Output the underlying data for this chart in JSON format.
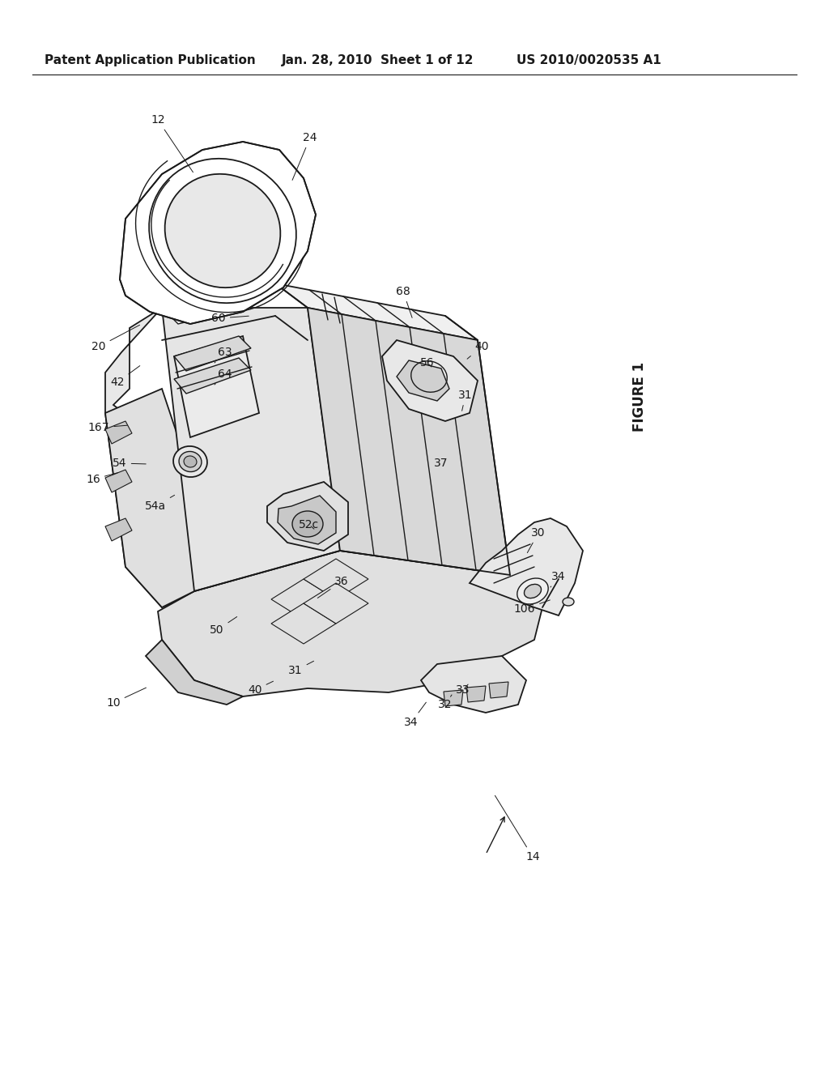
{
  "bg_color": "#ffffff",
  "header_left": "Patent Application Publication",
  "header_mid": "Jan. 28, 2010  Sheet 1 of 12",
  "header_right": "US 2010/0020535 A1",
  "figure_label": "FIGURE 1",
  "line_color": "#1a1a1a",
  "header_fontsize": 11,
  "label_fontsize": 10,
  "fig_width": 10.24,
  "fig_height": 13.2,
  "dpi": 100,
  "annotations": [
    [
      "10",
      148,
      870
    ],
    [
      "12",
      198,
      155
    ],
    [
      "14",
      660,
      1060
    ],
    [
      "16",
      118,
      595
    ],
    [
      "20",
      128,
      430
    ],
    [
      "24",
      378,
      175
    ],
    [
      "30",
      668,
      660
    ],
    [
      "31",
      370,
      830
    ],
    [
      "31",
      578,
      490
    ],
    [
      "32",
      555,
      870
    ],
    [
      "33",
      578,
      855
    ],
    [
      "34",
      510,
      895
    ],
    [
      "34",
      690,
      715
    ],
    [
      "36",
      428,
      720
    ],
    [
      "37",
      548,
      575
    ],
    [
      "40",
      318,
      855
    ],
    [
      "40",
      598,
      430
    ],
    [
      "42",
      150,
      475
    ],
    [
      "50",
      278,
      780
    ],
    [
      "52c",
      388,
      650
    ],
    [
      "54",
      155,
      575
    ],
    [
      "54a",
      198,
      628
    ],
    [
      "56",
      528,
      450
    ],
    [
      "60",
      278,
      395
    ],
    [
      "63",
      290,
      470
    ],
    [
      "64",
      288,
      498
    ],
    [
      "68",
      498,
      365
    ],
    [
      "106",
      650,
      755
    ],
    [
      "167",
      128,
      530
    ]
  ]
}
